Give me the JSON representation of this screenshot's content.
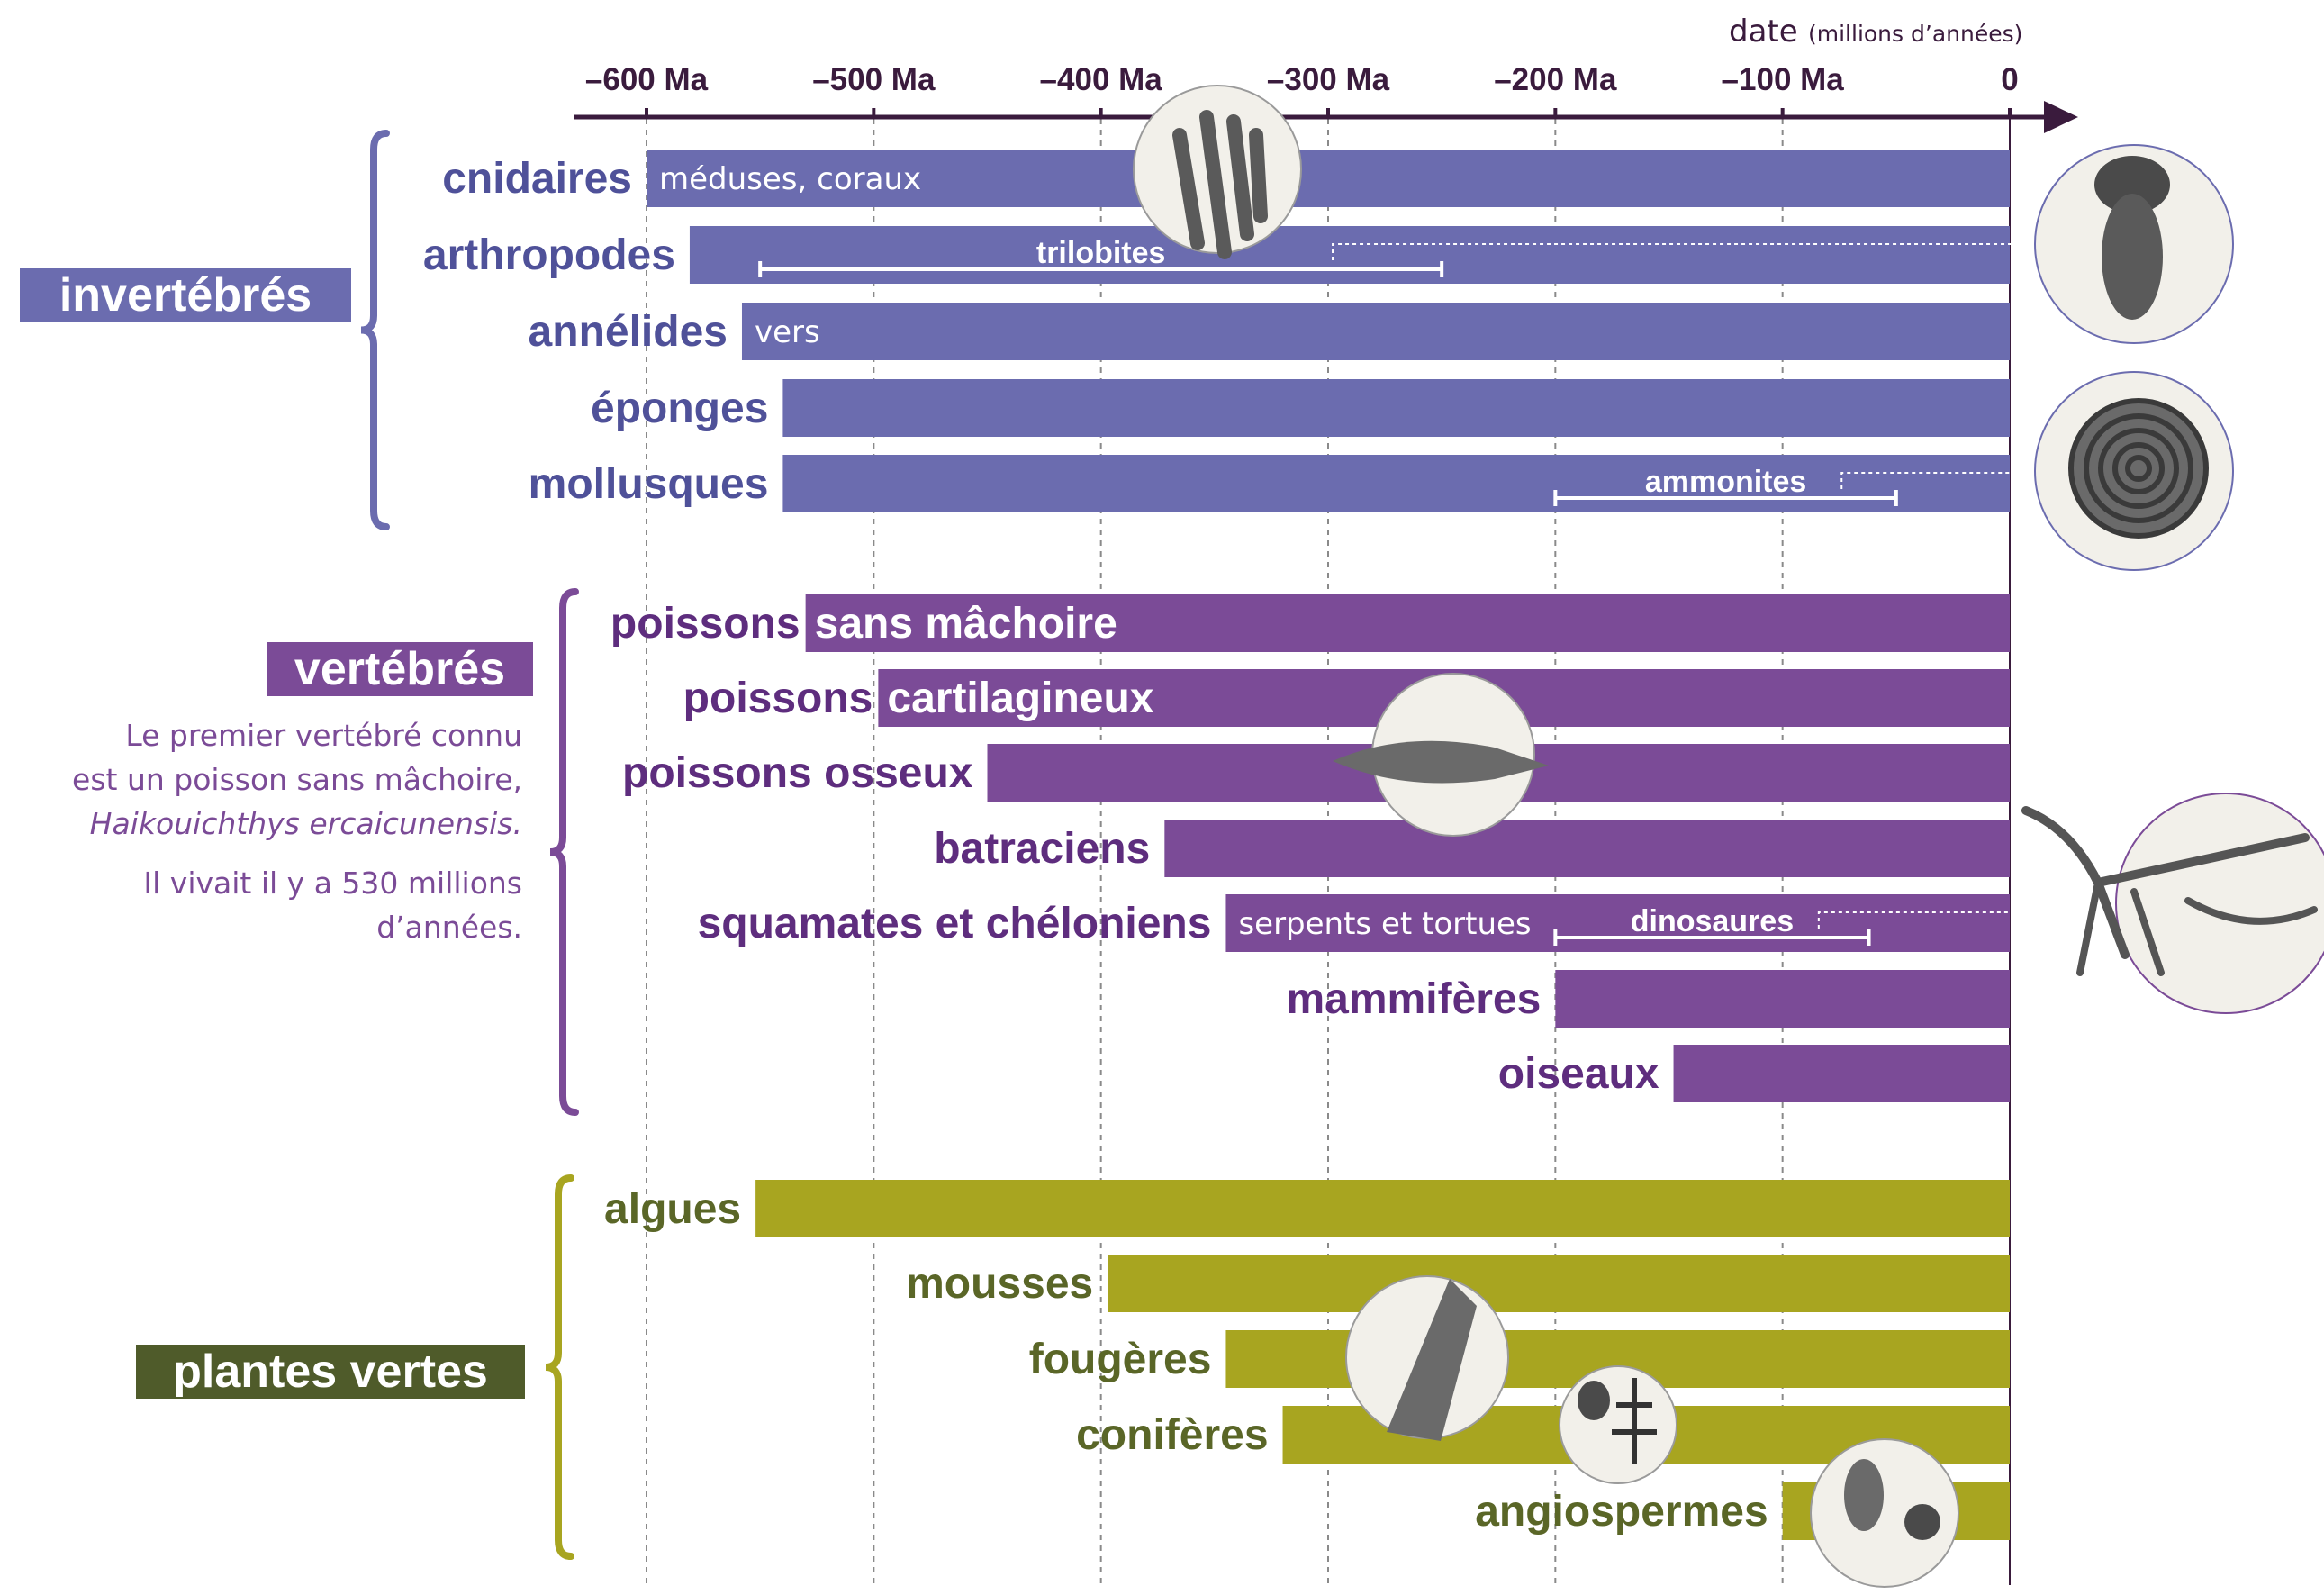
{
  "colors": {
    "invertebres": "#6b6caf",
    "invertebres_text": "#4f5199",
    "vertebres": "#7b4b97",
    "vertebres_text": "#5e2d7e",
    "plantes": "#a8a520",
    "plantes_text": "#5a6627",
    "plantes_tag": "#4f5b2a",
    "axis": "#3a1b3d",
    "grid": "#8a8a8a"
  },
  "axis": {
    "title": "date",
    "unit": "(millions d’années)",
    "ticks": [
      -600,
      -500,
      -400,
      -300,
      -200,
      -100,
      0
    ],
    "tick_labels": [
      "–600 Ma",
      "–500 Ma",
      "–400 Ma",
      "–300 Ma",
      "–200 Ma",
      "–100 Ma",
      "0"
    ]
  },
  "groups": [
    {
      "id": "invertebres",
      "label": "invertébrés"
    },
    {
      "id": "vertebres",
      "label": "vertébrés"
    },
    {
      "id": "plantes",
      "label": "plantes vertes"
    }
  ],
  "note": {
    "line1": "Le premier vertébré connu",
    "line2": "est un poisson sans mâchoire,",
    "line3": "Haikouichthys ercaicunensis.",
    "line4": "Il vivait il y a 530 millions",
    "line5": "d’années."
  },
  "chart_data": {
    "type": "bar",
    "orientation": "horizontal",
    "xlim": [
      -600,
      0
    ],
    "x_unit": "Ma",
    "series": [
      {
        "group": "invertebres",
        "label": "cnidaires",
        "start": -600,
        "end": 0,
        "note": "méduses, coraux"
      },
      {
        "group": "invertebres",
        "label": "arthropodes",
        "start": -581,
        "end": 0
      },
      {
        "group": "invertebres",
        "label": "annélides",
        "start": -558,
        "end": 0,
        "note": "vers"
      },
      {
        "group": "invertebres",
        "label": "éponges",
        "start": -540,
        "end": 0
      },
      {
        "group": "invertebres",
        "label": "mollusques",
        "start": -540,
        "end": 0
      },
      {
        "group": "vertebres",
        "label": "poissons",
        "label2": "sans mâchoire",
        "start": -530,
        "end": 0
      },
      {
        "group": "vertebres",
        "label": "poissons",
        "label2": "cartilagineux",
        "start": -498,
        "end": 0
      },
      {
        "group": "vertebres",
        "label": "poissons osseux",
        "start": -450,
        "end": 0
      },
      {
        "group": "vertebres",
        "label": "batraciens",
        "start": -372,
        "end": 0
      },
      {
        "group": "vertebres",
        "label": "squamates et chéloniens",
        "start": -345,
        "end": 0,
        "note": "serpents et tortues"
      },
      {
        "group": "vertebres",
        "label": "mammifères",
        "start": -200,
        "end": 0
      },
      {
        "group": "vertebres",
        "label": "oiseaux",
        "start": -148,
        "end": 0
      },
      {
        "group": "plantes",
        "label": "algues",
        "start": -552,
        "end": 0
      },
      {
        "group": "plantes",
        "label": "mousses",
        "start": -397,
        "end": 0
      },
      {
        "group": "plantes",
        "label": "fougères",
        "start": -345,
        "end": 0
      },
      {
        "group": "plantes",
        "label": "conifères",
        "start": -320,
        "end": 0
      },
      {
        "group": "plantes",
        "label": "angiospermes",
        "start": -100,
        "end": 0
      }
    ],
    "extinct_ranges": [
      {
        "label": "trilobites",
        "row": 1,
        "start": -550,
        "end": -250
      },
      {
        "label": "ammonites",
        "row": 4,
        "start": -200,
        "end": -50
      },
      {
        "label": "dinosaures",
        "row": 9,
        "start": -200,
        "end": -62
      }
    ]
  }
}
